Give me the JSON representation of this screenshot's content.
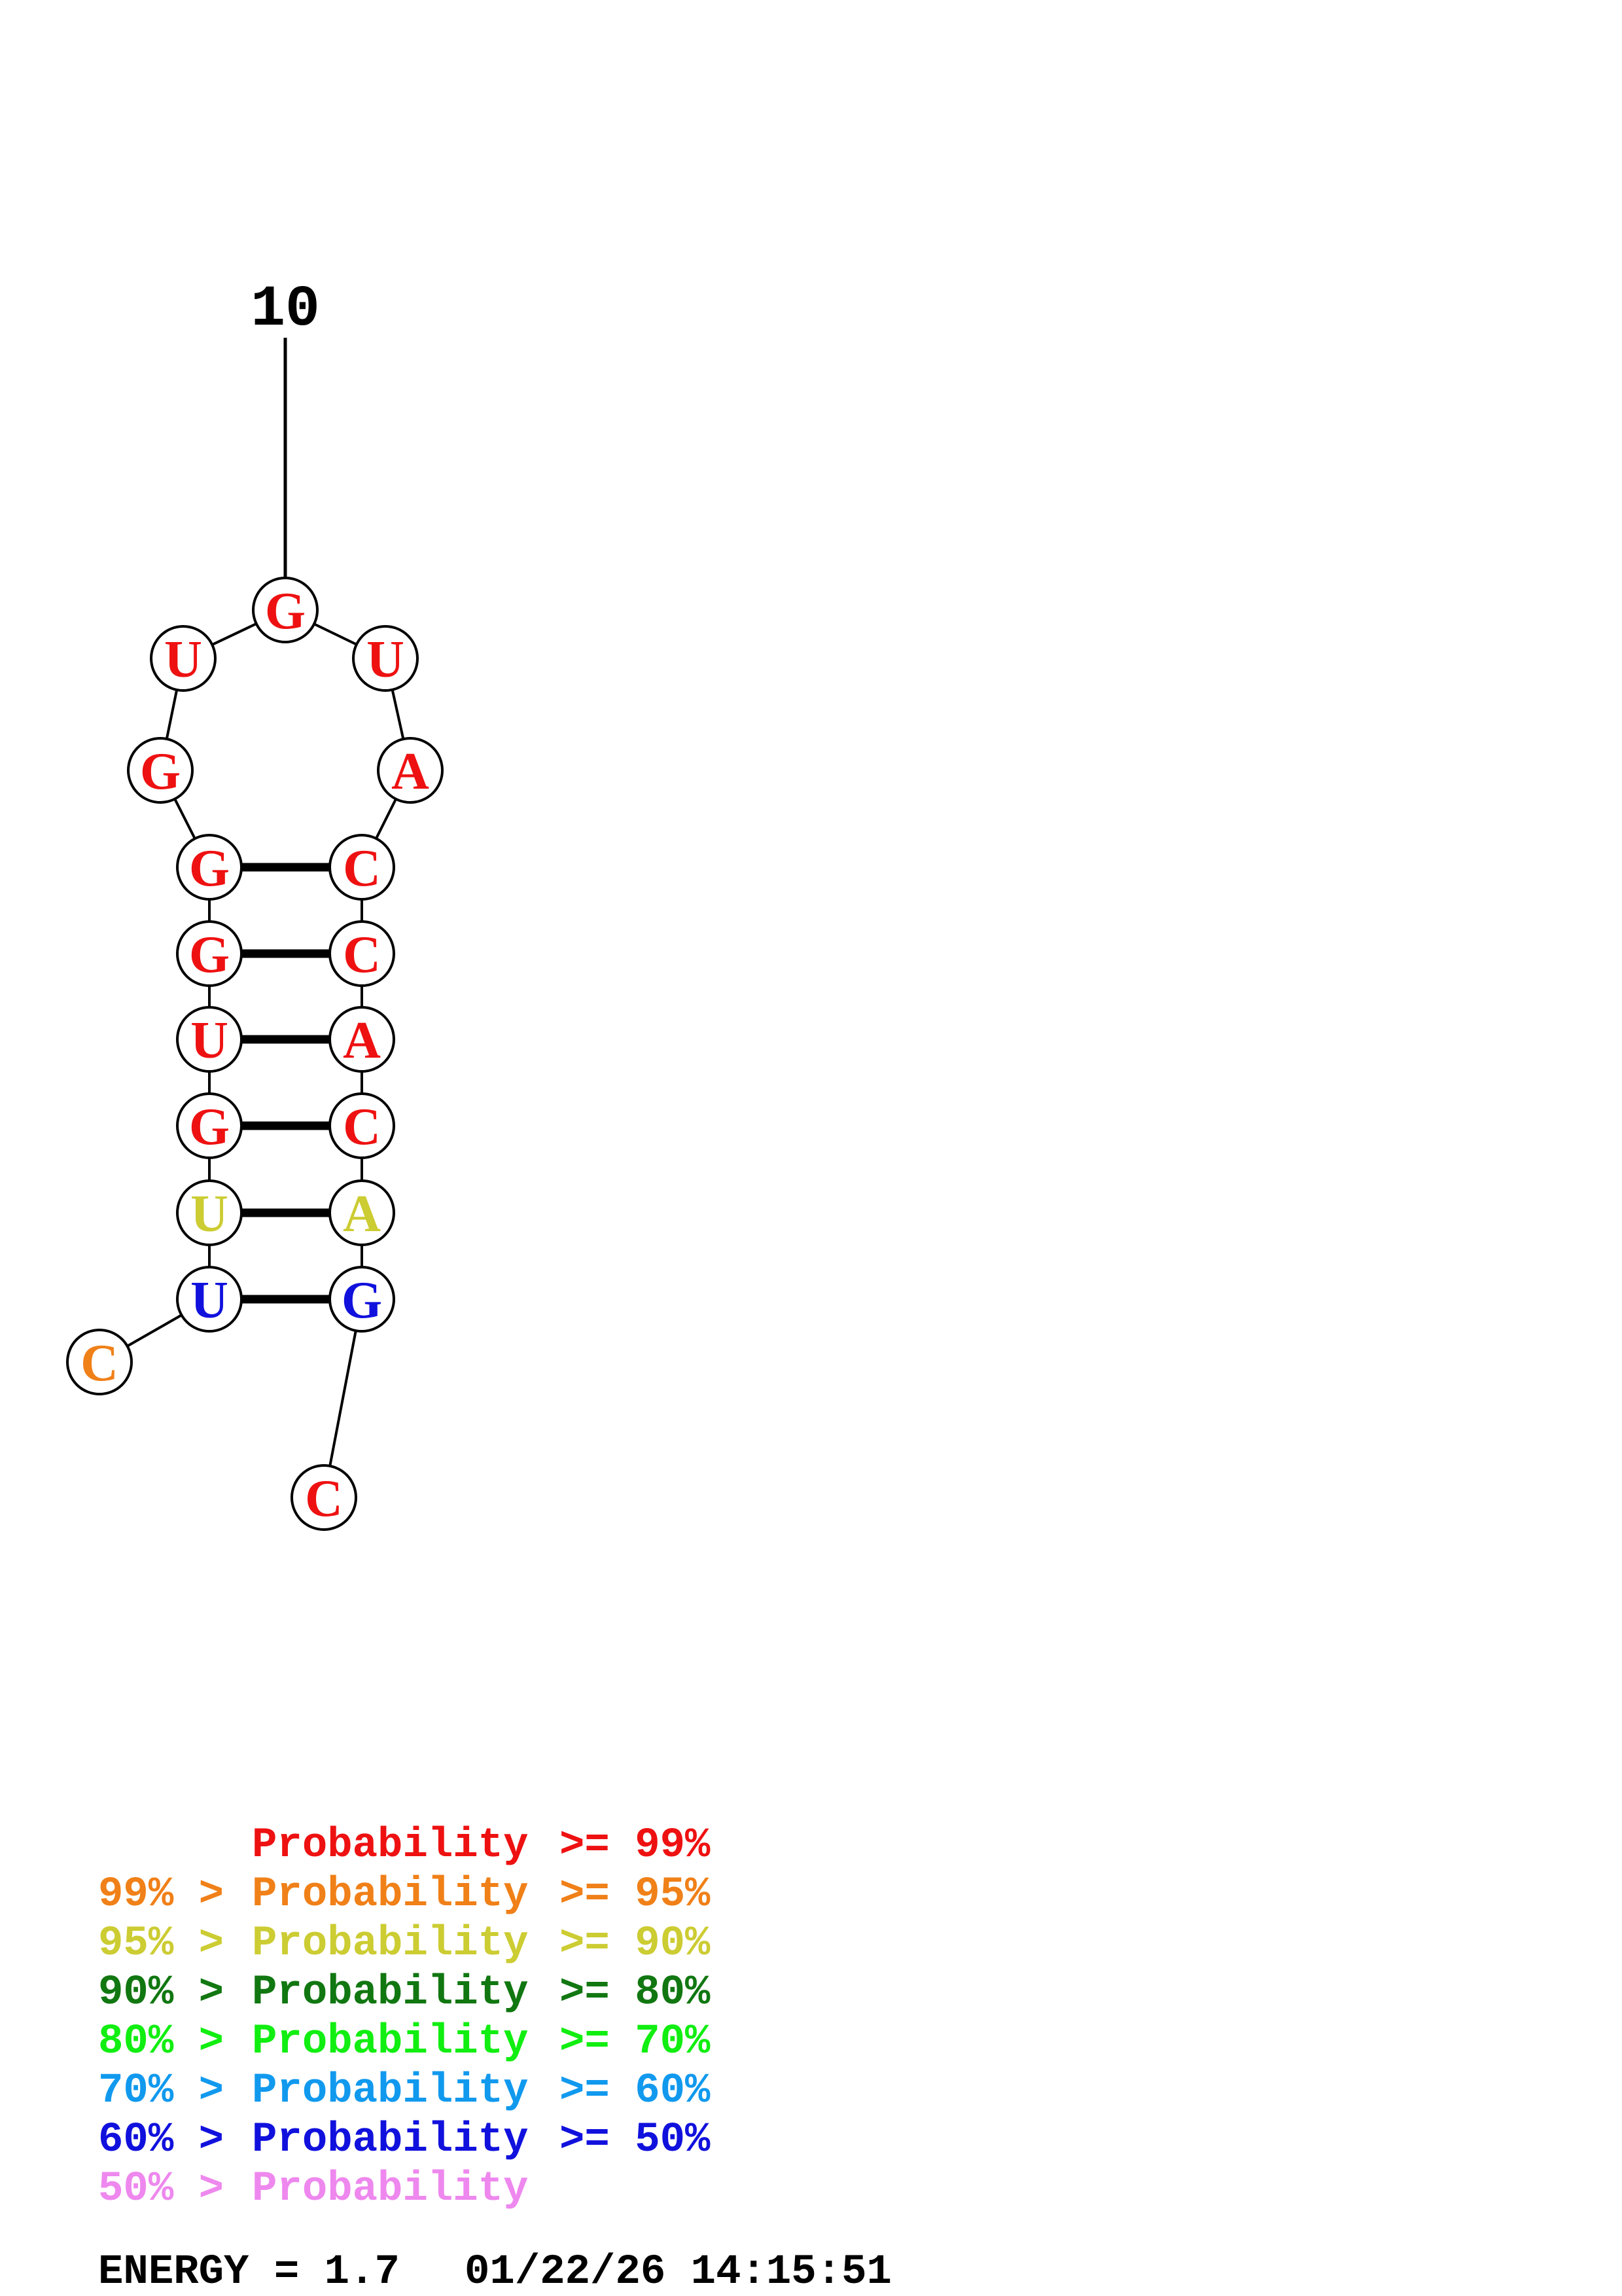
{
  "colors": {
    "red": "#ee1111",
    "orange": "#f08018",
    "yellow": "#cccc33",
    "dark_green": "#117711",
    "green": "#11ee11",
    "cyan": "#1199ee",
    "blue": "#1111dd",
    "pink": "#ee88ee",
    "black": "#000000"
  },
  "index_label": "10",
  "nucleotides": [
    {
      "letter": "C",
      "color": "orange"
    },
    {
      "letter": "U",
      "color": "blue"
    },
    {
      "letter": "U",
      "color": "yellow"
    },
    {
      "letter": "G",
      "color": "red"
    },
    {
      "letter": "U",
      "color": "red"
    },
    {
      "letter": "G",
      "color": "red"
    },
    {
      "letter": "G",
      "color": "red"
    },
    {
      "letter": "G",
      "color": "red"
    },
    {
      "letter": "U",
      "color": "red"
    },
    {
      "letter": "G",
      "color": "red"
    },
    {
      "letter": "U",
      "color": "red"
    },
    {
      "letter": "A",
      "color": "red"
    },
    {
      "letter": "C",
      "color": "red"
    },
    {
      "letter": "C",
      "color": "red"
    },
    {
      "letter": "A",
      "color": "red"
    },
    {
      "letter": "C",
      "color": "red"
    },
    {
      "letter": "A",
      "color": "yellow"
    },
    {
      "letter": "G",
      "color": "blue"
    },
    {
      "letter": "C",
      "color": "red"
    }
  ],
  "base_pairs": [
    [
      2,
      18
    ],
    [
      3,
      17
    ],
    [
      4,
      16
    ],
    [
      5,
      15
    ],
    [
      6,
      14
    ],
    [
      7,
      13
    ]
  ],
  "legend": [
    {
      "prefix": "",
      "label": "Probability",
      "suffix": ">= 99%",
      "color": "red"
    },
    {
      "prefix": "99% >",
      "label": "Probability",
      "suffix": ">= 95%",
      "color": "orange"
    },
    {
      "prefix": "95% >",
      "label": "Probability",
      "suffix": ">= 90%",
      "color": "yellow"
    },
    {
      "prefix": "90% >",
      "label": "Probability",
      "suffix": ">= 80%",
      "color": "dark_green"
    },
    {
      "prefix": "80% >",
      "label": "Probability",
      "suffix": ">= 70%",
      "color": "green"
    },
    {
      "prefix": "70% >",
      "label": "Probability",
      "suffix": ">= 60%",
      "color": "cyan"
    },
    {
      "prefix": "60% >",
      "label": "Probability",
      "suffix": ">= 50%",
      "color": "blue"
    },
    {
      "prefix": "50% >",
      "label": "Probability",
      "suffix": "",
      "color": "pink"
    }
  ],
  "footer": {
    "energy": "ENERGY = 1.7",
    "timestamp": "01/22/26 14:15:51"
  }
}
